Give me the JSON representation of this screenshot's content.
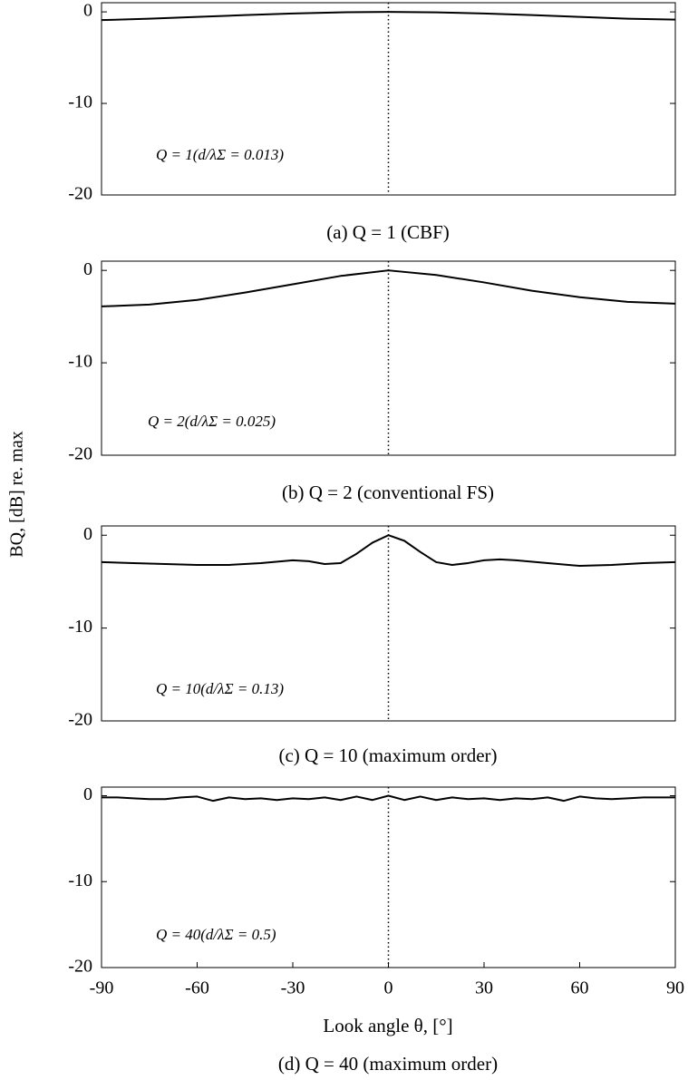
{
  "y_label": "BQ, [dB] re. max",
  "chart_data": [
    {
      "type": "line",
      "caption": "(a)  Q = 1  (CBF)",
      "annotation": "Q = 1(d/λΣ = 0.013)",
      "xlim": [
        -90,
        90
      ],
      "ylim": [
        -20,
        1
      ],
      "yticks": [
        0,
        -10,
        -20
      ],
      "vline": 0,
      "x": [
        -90,
        -75,
        -60,
        -45,
        -30,
        -15,
        0,
        15,
        30,
        45,
        60,
        75,
        90
      ],
      "series": [
        {
          "color": "#000000",
          "values": [
            -0.9,
            -0.75,
            -0.55,
            -0.35,
            -0.18,
            -0.05,
            0,
            -0.05,
            -0.18,
            -0.35,
            -0.55,
            -0.75,
            -0.85
          ]
        }
      ]
    },
    {
      "type": "line",
      "caption": "(b)  Q = 2  (conventional  FS)",
      "annotation": "Q = 2(d/λΣ = 0.025)",
      "xlim": [
        -90,
        90
      ],
      "ylim": [
        -20,
        1
      ],
      "yticks": [
        0,
        -10,
        -20
      ],
      "vline": 0,
      "x": [
        -90,
        -75,
        -60,
        -45,
        -30,
        -15,
        0,
        15,
        30,
        45,
        60,
        75,
        90
      ],
      "series": [
        {
          "color": "#000000",
          "values": [
            -3.9,
            -3.7,
            -3.2,
            -2.4,
            -1.5,
            -0.6,
            0,
            -0.5,
            -1.3,
            -2.2,
            -2.9,
            -3.4,
            -3.6
          ]
        }
      ]
    },
    {
      "type": "line",
      "caption": "(c)  Q = 10  (maximum  order)",
      "annotation": "Q = 10(d/λΣ = 0.13)",
      "xlim": [
        -90,
        90
      ],
      "ylim": [
        -20,
        1
      ],
      "yticks": [
        0,
        -10,
        -20
      ],
      "vline": 0,
      "x": [
        -90,
        -80,
        -70,
        -60,
        -50,
        -40,
        -30,
        -25,
        -20,
        -15,
        -10,
        -5,
        0,
        5,
        10,
        15,
        20,
        25,
        30,
        35,
        40,
        50,
        60,
        70,
        80,
        90
      ],
      "series": [
        {
          "color": "#000000",
          "values": [
            -2.9,
            -3.0,
            -3.1,
            -3.2,
            -3.2,
            -3.0,
            -2.7,
            -2.8,
            -3.1,
            -3.0,
            -2.0,
            -0.8,
            0,
            -0.6,
            -1.8,
            -2.9,
            -3.2,
            -3.0,
            -2.7,
            -2.6,
            -2.7,
            -3.0,
            -3.3,
            -3.2,
            -3.0,
            -2.9
          ]
        }
      ]
    },
    {
      "type": "line",
      "caption": "(d)  Q = 40  (maximum  order)",
      "annotation": "Q = 40(d/λΣ = 0.5)",
      "x_label": "Look angle θ, [°]",
      "xlim": [
        -90,
        90
      ],
      "ylim": [
        -20,
        1
      ],
      "yticks": [
        0,
        -10,
        -20
      ],
      "xticks": [
        -90,
        -60,
        -30,
        0,
        30,
        60,
        90
      ],
      "vline": 0,
      "x": [
        -90,
        -85,
        -80,
        -75,
        -70,
        -65,
        -60,
        -55,
        -50,
        -45,
        -40,
        -35,
        -30,
        -25,
        -20,
        -15,
        -10,
        -5,
        0,
        5,
        10,
        15,
        20,
        25,
        30,
        35,
        40,
        45,
        50,
        55,
        60,
        65,
        70,
        75,
        80,
        85,
        90
      ],
      "series": [
        {
          "color": "#000000",
          "values": [
            -0.2,
            -0.2,
            -0.3,
            -0.4,
            -0.4,
            -0.2,
            -0.1,
            -0.6,
            -0.2,
            -0.4,
            -0.3,
            -0.5,
            -0.3,
            -0.4,
            -0.2,
            -0.5,
            -0.1,
            -0.5,
            0,
            -0.5,
            -0.1,
            -0.5,
            -0.2,
            -0.4,
            -0.3,
            -0.5,
            -0.3,
            -0.4,
            -0.2,
            -0.6,
            -0.1,
            -0.3,
            -0.4,
            -0.3,
            -0.2,
            -0.2,
            -0.2
          ]
        }
      ]
    }
  ]
}
